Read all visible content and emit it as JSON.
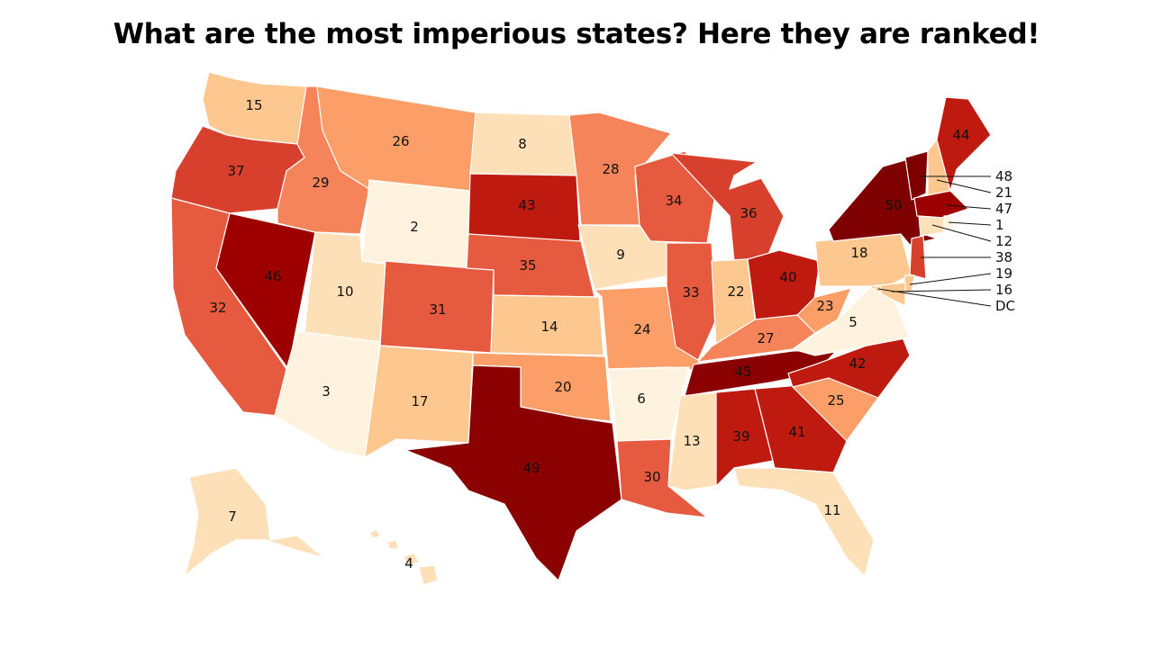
{
  "title": "What are the most imperious states? Here they are ranked!",
  "colors": {
    "scale": [
      "#fff3e0",
      "#fde0b8",
      "#fdc890",
      "#fb9e67",
      "#f5845a",
      "#e65a40",
      "#d8402e",
      "#bf1a0f",
      "#9e0000",
      "#7f0000"
    ],
    "background": "#ffffff"
  },
  "states": [
    {
      "id": "WA",
      "label": "15"
    },
    {
      "id": "OR",
      "label": "37"
    },
    {
      "id": "CA",
      "label": "32"
    },
    {
      "id": "NV",
      "label": "46"
    },
    {
      "id": "ID",
      "label": "29"
    },
    {
      "id": "MT",
      "label": "26"
    },
    {
      "id": "WY",
      "label": "2"
    },
    {
      "id": "UT",
      "label": "10"
    },
    {
      "id": "AZ",
      "label": "3"
    },
    {
      "id": "CO",
      "label": "31"
    },
    {
      "id": "NM",
      "label": "17"
    },
    {
      "id": "ND",
      "label": "8"
    },
    {
      "id": "SD",
      "label": "43"
    },
    {
      "id": "NE",
      "label": "35"
    },
    {
      "id": "KS",
      "label": "14"
    },
    {
      "id": "OK",
      "label": "20"
    },
    {
      "id": "TX",
      "label": "49"
    },
    {
      "id": "MN",
      "label": "28"
    },
    {
      "id": "IA",
      "label": "9"
    },
    {
      "id": "MO",
      "label": "24"
    },
    {
      "id": "AR",
      "label": "6"
    },
    {
      "id": "LA",
      "label": "30"
    },
    {
      "id": "WI",
      "label": "34"
    },
    {
      "id": "IL",
      "label": "33"
    },
    {
      "id": "MI",
      "label": "36"
    },
    {
      "id": "IN",
      "label": "22"
    },
    {
      "id": "OH",
      "label": "40"
    },
    {
      "id": "KY",
      "label": "27"
    },
    {
      "id": "TN",
      "label": "45"
    },
    {
      "id": "MS",
      "label": "13"
    },
    {
      "id": "AL",
      "label": "39"
    },
    {
      "id": "GA",
      "label": "41"
    },
    {
      "id": "FL",
      "label": "11"
    },
    {
      "id": "SC",
      "label": "25"
    },
    {
      "id": "NC",
      "label": "42"
    },
    {
      "id": "VA",
      "label": "5"
    },
    {
      "id": "WV",
      "label": "23"
    },
    {
      "id": "PA",
      "label": "18"
    },
    {
      "id": "NY",
      "label": "50"
    },
    {
      "id": "NJ",
      "label": "38"
    },
    {
      "id": "ME",
      "label": "44"
    },
    {
      "id": "AK",
      "label": "7"
    },
    {
      "id": "HI",
      "label": "4"
    },
    {
      "id": "VT",
      "label": "48"
    },
    {
      "id": "NH",
      "label": "21"
    },
    {
      "id": "MA",
      "label": "47"
    },
    {
      "id": "RI",
      "label": "1"
    },
    {
      "id": "CT",
      "label": "12"
    },
    {
      "id": "DE",
      "label": "19"
    },
    {
      "id": "MD",
      "label": "16"
    },
    {
      "id": "DC",
      "label": "DC"
    }
  ]
}
